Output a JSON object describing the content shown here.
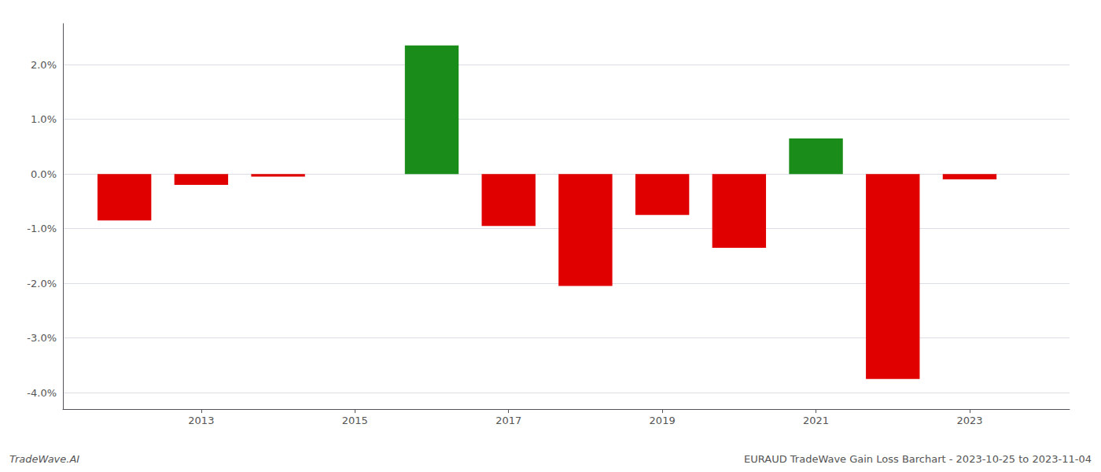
{
  "chart_data": {
    "type": "bar",
    "x": [
      2012,
      2013,
      2014,
      2016,
      2017,
      2018,
      2019,
      2020,
      2021,
      2022,
      2023
    ],
    "values": [
      -0.85,
      -0.2,
      -0.05,
      2.35,
      -0.95,
      -2.05,
      -0.75,
      -1.35,
      0.65,
      -3.75,
      -0.1
    ],
    "colors": [
      "#e00000",
      "#e00000",
      "#e00000",
      "#1a8c1a",
      "#e00000",
      "#e00000",
      "#e00000",
      "#e00000",
      "#1a8c1a",
      "#e00000",
      "#e00000"
    ],
    "xlim": [
      2011.2,
      2024.3
    ],
    "xticks": [
      2013,
      2015,
      2017,
      2019,
      2021,
      2023
    ],
    "ylim": [
      -4.3,
      2.75
    ],
    "yticks": [
      {
        "value": -4.0,
        "label": "-4.0%"
      },
      {
        "value": -3.0,
        "label": "-3.0%"
      },
      {
        "value": -2.0,
        "label": "-2.0%"
      },
      {
        "value": -1.0,
        "label": "-1.0%"
      },
      {
        "value": 0.0,
        "label": "0.0%"
      },
      {
        "value": 1.0,
        "label": "1.0%"
      },
      {
        "value": 2.0,
        "label": "2.0%"
      }
    ],
    "grid": true,
    "annotations": [
      {
        "text": "TradeWave.AI"
      },
      {
        "text": "EURAUD TradeWave Gain Loss Barchart - 2023-10-25 to 2023-11-04"
      }
    ]
  }
}
